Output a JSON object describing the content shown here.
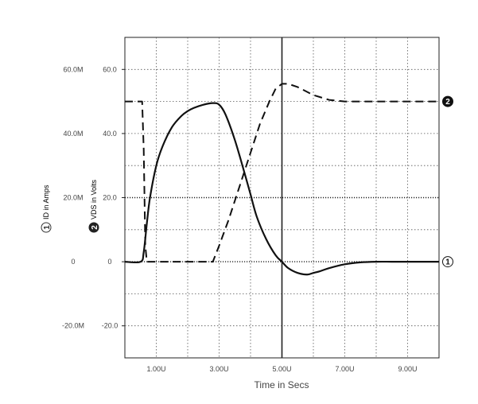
{
  "chart_data": {
    "type": "line",
    "title": "",
    "xlabel": "Time in Secs",
    "x_tick_labels": [
      "1.00U",
      "3.00U",
      "5.00U",
      "7.00U",
      "9.00U"
    ],
    "x_ticks": [
      1.0,
      3.0,
      5.0,
      7.0,
      9.0
    ],
    "xlim": [
      0,
      10
    ],
    "grid": true,
    "legend": "none",
    "y_axes": [
      {
        "id": "1",
        "label": "ID in Amps",
        "tick_labels": [
          "60.0M",
          "40.0M",
          "20.0M",
          "0",
          "-20.0M"
        ],
        "ticks": [
          60,
          40,
          20,
          0,
          -20
        ],
        "ylim": [
          -30,
          70
        ]
      },
      {
        "id": "2",
        "label": "VDS in Volts",
        "tick_labels": [
          "60.0",
          "40.0",
          "20.0",
          "0",
          "-20.0"
        ],
        "ticks": [
          60,
          40,
          20,
          0,
          -20
        ],
        "ylim": [
          -30,
          70
        ]
      }
    ],
    "series": [
      {
        "marker_label": "1",
        "y_axis": "1",
        "style": "solid",
        "x": [
          0,
          0.5,
          0.6,
          0.7,
          0.8,
          1.0,
          1.2,
          1.5,
          1.8,
          2.0,
          2.2,
          2.5,
          2.8,
          3.0,
          3.2,
          3.5,
          3.8,
          4.0,
          4.2,
          4.5,
          4.8,
          5.0,
          5.2,
          5.5,
          5.8,
          6.0,
          6.2,
          6.5,
          7.0,
          7.5,
          8.0,
          8.5,
          9.0,
          9.5,
          10.0
        ],
        "values": [
          0,
          0,
          3,
          12,
          20,
          30,
          36,
          42,
          45.5,
          47,
          48,
          49,
          49.5,
          49,
          46,
          38,
          28,
          21,
          14,
          7,
          2,
          0,
          -2,
          -3.5,
          -4,
          -3.5,
          -3,
          -2,
          -0.8,
          -0.2,
          0,
          0,
          0,
          0,
          0
        ]
      },
      {
        "marker_label": "2",
        "y_axis": "2",
        "style": "dashed",
        "x": [
          0,
          0.55,
          0.55,
          0.6,
          0.65,
          0.7,
          2.8,
          3.0,
          3.3,
          3.6,
          4.0,
          4.3,
          4.6,
          4.8,
          5.0,
          5.2,
          5.5,
          5.8,
          6.0,
          6.5,
          7.0,
          7.5,
          8.0,
          9.0,
          10.0
        ],
        "values": [
          50,
          50,
          50,
          35,
          5,
          0,
          0,
          5,
          13,
          22,
          34,
          43,
          50,
          54,
          55.5,
          55.5,
          54.5,
          53,
          52,
          50.5,
          50,
          50,
          50,
          50,
          50
        ]
      }
    ]
  }
}
